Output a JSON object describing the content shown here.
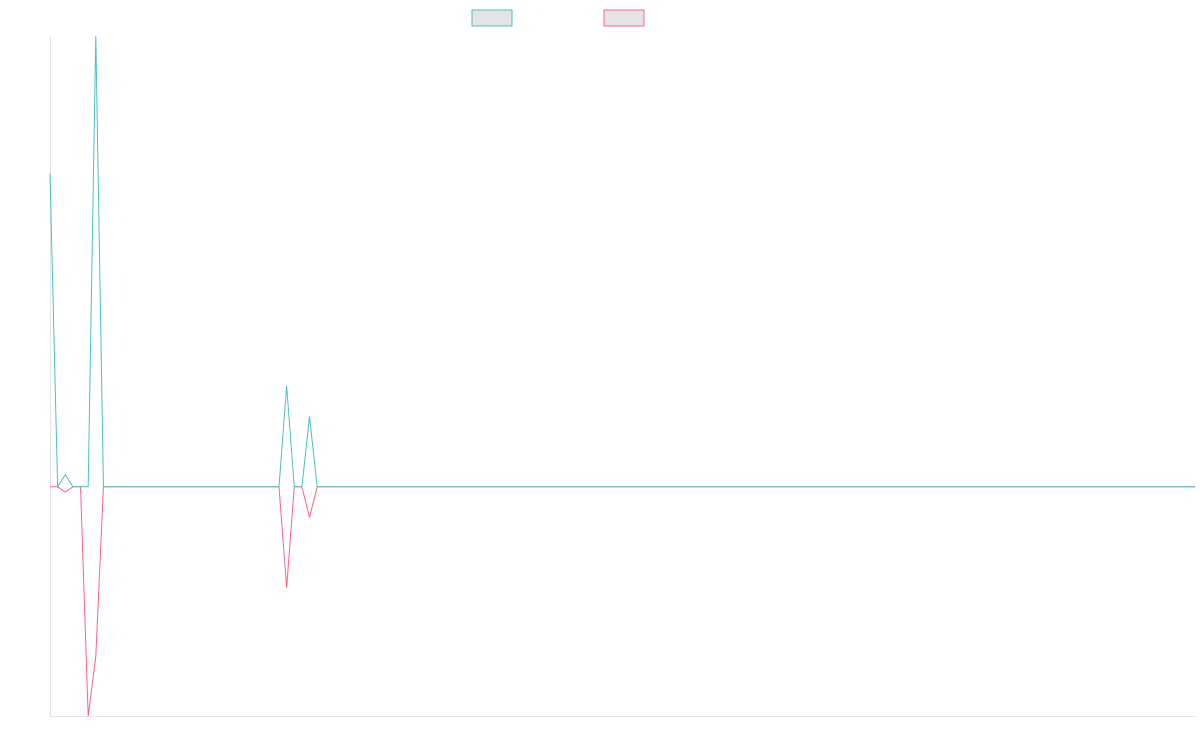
{
  "chart_data": {
    "type": "line",
    "title": "",
    "xlabel": "",
    "ylabel": "",
    "x": [
      0,
      1,
      2,
      3,
      4,
      5,
      6,
      7,
      8,
      9,
      10,
      11,
      12,
      13,
      14,
      15,
      16,
      17,
      18,
      19,
      20,
      21,
      22,
      23,
      24,
      25,
      26,
      27,
      28,
      29,
      30,
      31,
      32,
      33,
      34,
      35,
      36,
      37,
      38,
      39,
      40,
      41,
      42,
      43,
      44,
      45,
      46,
      47,
      48,
      49,
      50,
      51,
      52,
      53,
      54,
      55,
      56,
      57,
      58,
      59,
      60,
      61,
      62,
      63,
      64,
      65,
      66,
      67,
      68,
      69,
      70,
      71,
      72,
      73,
      74,
      75,
      76,
      77,
      78,
      79,
      80,
      81,
      82,
      83,
      84,
      85,
      86,
      87,
      88,
      89,
      90,
      91,
      92,
      93,
      94,
      95,
      96,
      97,
      98,
      99,
      100,
      101,
      102,
      103,
      104,
      105,
      106,
      107,
      108,
      109,
      110,
      111,
      112,
      113,
      114,
      115,
      116,
      117,
      118,
      119,
      120,
      121,
      122,
      123,
      124,
      125,
      126,
      127,
      128,
      129,
      130,
      131,
      132,
      133,
      134,
      135,
      136,
      137,
      138,
      139,
      140,
      141,
      142,
      143,
      144,
      145,
      146,
      147,
      148,
      149,
      150
    ],
    "ylim": [
      -300,
      590
    ],
    "grid": false,
    "legend_position": "top-center",
    "series": [
      {
        "color": "#4bc0c0",
        "values": [
          410,
          0,
          16,
          0,
          0,
          0,
          590,
          0,
          0,
          0,
          0,
          0,
          0,
          0,
          0,
          0,
          0,
          0,
          0,
          0,
          0,
          0,
          0,
          0,
          0,
          0,
          0,
          0,
          0,
          0,
          0,
          132,
          0,
          0,
          92,
          0,
          0,
          0,
          0,
          0,
          0,
          0,
          0,
          0,
          0,
          0,
          0,
          0,
          0,
          0,
          0,
          0,
          0,
          0,
          0,
          0,
          0,
          0,
          0,
          0,
          0,
          0,
          0,
          0,
          0,
          0,
          0,
          0,
          0,
          0,
          0,
          0,
          0,
          0,
          0,
          0,
          0,
          0,
          0,
          0,
          0,
          0,
          0,
          0,
          0,
          0,
          0,
          0,
          0,
          0,
          0,
          0,
          0,
          0,
          0,
          0,
          0,
          0,
          0,
          0,
          0,
          0,
          0,
          0,
          0,
          0,
          0,
          0,
          0,
          0,
          0,
          0,
          0,
          0,
          0,
          0,
          0,
          0,
          0,
          0,
          0,
          0,
          0,
          0,
          0,
          0,
          0,
          0,
          0,
          0,
          0,
          0,
          0,
          0,
          0,
          0,
          0,
          0,
          0,
          0,
          0,
          0,
          0,
          0,
          0,
          0,
          0,
          0,
          0,
          0,
          0
        ]
      },
      {
        "color": "#ff6384",
        "values": [
          0,
          0,
          -7,
          0,
          0,
          -300,
          -222,
          0,
          0,
          0,
          0,
          0,
          0,
          0,
          0,
          0,
          0,
          0,
          0,
          0,
          0,
          0,
          0,
          0,
          0,
          0,
          0,
          0,
          0,
          0,
          0,
          -132,
          0,
          0,
          -40,
          0,
          0,
          0,
          0,
          0,
          0,
          0,
          0,
          0,
          0,
          0,
          0,
          0,
          0,
          0,
          0,
          0,
          0,
          0,
          0,
          0,
          0,
          0,
          0,
          0,
          0,
          0,
          0,
          0,
          0,
          0,
          0,
          0,
          0,
          0,
          0,
          0,
          0,
          0,
          0,
          0,
          0,
          0,
          0,
          0,
          0,
          0,
          0,
          0,
          0,
          0,
          0,
          0,
          0,
          0,
          0,
          0,
          0,
          0,
          0,
          0,
          0,
          0,
          0,
          0,
          0,
          0,
          0,
          0,
          0,
          0,
          0,
          0,
          0,
          0,
          0,
          0,
          0,
          0,
          0,
          0,
          0,
          0,
          0,
          0,
          0,
          0,
          0,
          0,
          0,
          0,
          0,
          0,
          0,
          0,
          0,
          0,
          0,
          0,
          0,
          0,
          0,
          0,
          0,
          0,
          0,
          0,
          0,
          0,
          0,
          0,
          0,
          0,
          0,
          0,
          0
        ]
      }
    ]
  }
}
